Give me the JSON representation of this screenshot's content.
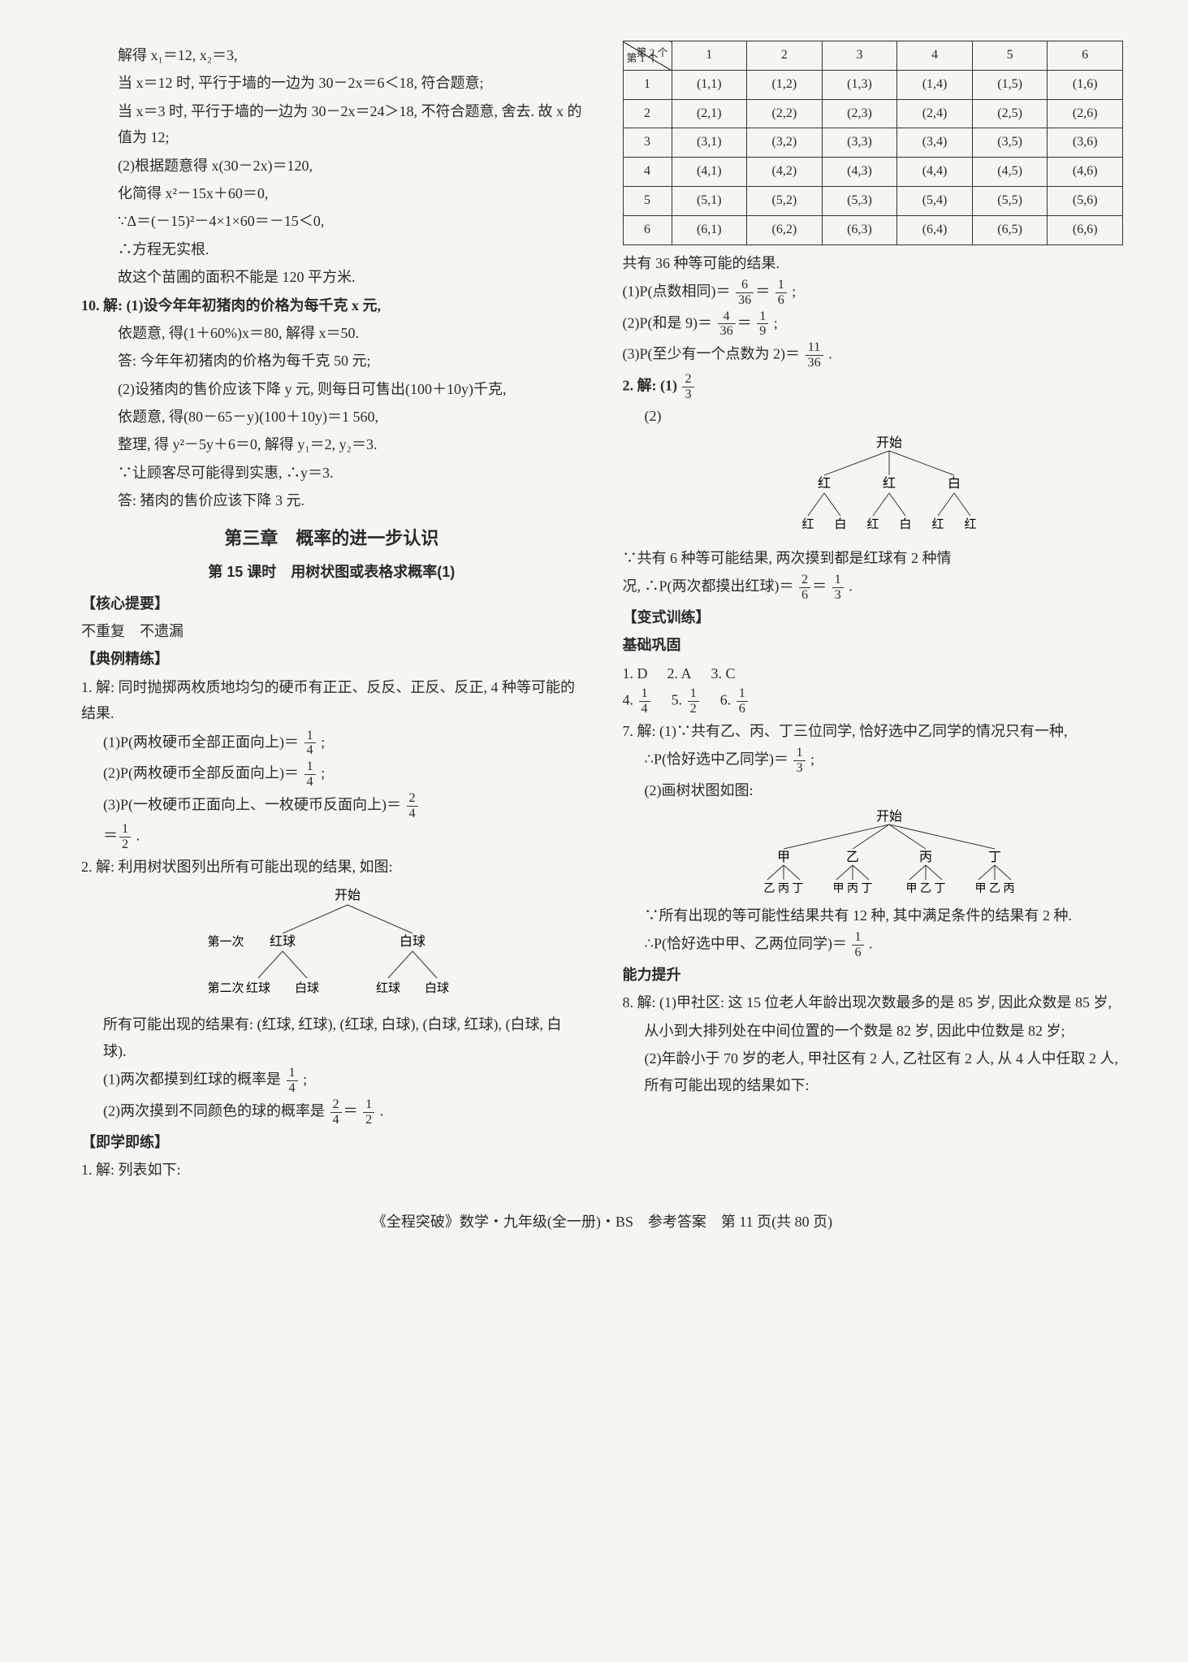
{
  "leftCol": {
    "l1": "解得 x₁＝12, x₂＝3,",
    "l2": "当 x＝12 时, 平行于墙的一边为 30－2x＝6＜18, 符合题意;",
    "l3": "当 x＝3 时, 平行于墙的一边为 30－2x＝24＞18, 不符合题意, 舍去. 故 x 的值为 12;",
    "l4": "(2)根据题意得 x(30－2x)＝120,",
    "l5": "化简得 x²－15x＋60＝0,",
    "l6": "∵Δ＝(－15)²－4×1×60＝－15＜0,",
    "l7": "∴方程无实根.",
    "l8": "故这个苗圃的面积不能是 120 平方米.",
    "q10": "10. 解: (1)设今年年初猪肉的价格为每千克 x 元,",
    "q10_2": "依题意, 得(1＋60%)x＝80, 解得 x＝50.",
    "q10_3": "答: 今年年初猪肉的价格为每千克 50 元;",
    "q10_4": "(2)设猪肉的售价应该下降 y 元, 则每日可售出(100＋10y)千克,",
    "q10_5": "依题意, 得(80－65－y)(100＋10y)＝1 560,",
    "q10_6": "整理, 得 y²－5y＋6＝0, 解得 y₁＝2, y₂＝3.",
    "q10_7": "∵让顾客尽可能得到实惠, ∴y＝3.",
    "q10_8": "答: 猪肉的售价应该下降 3 元.",
    "chapterTitle": "第三章　概率的进一步认识",
    "lessonTitle": "第 15 课时　用树状图或表格求概率(1)",
    "coreHeading": "【核心提要】",
    "coreContent": "不重复　不遗漏",
    "exHeading": "【典例精练】",
    "ex1": "1. 解: 同时抛掷两枚质地均匀的硬币有正正、反反、正反、反正, 4 种等可能的结果.",
    "ex1_1a": "(1)P(两枚硬币全部正面向上)＝",
    "ex1_2a": "(2)P(两枚硬币全部反面向上)＝",
    "ex1_3a": "(3)P(一枚硬币正面向上、一枚硬币反面向上)＝",
    "ex2": "2. 解: 利用树状图列出所有可能出现的结果, 如图:",
    "tree2_start": "开始",
    "tree2_l1": "第一次",
    "tree2_red": "红球",
    "tree2_white": "白球",
    "tree2_l2": "第二次",
    "ex2_res": "所有可能出现的结果有: (红球, 红球), (红球, 白球), (白球, 红球), (白球, 白球).",
    "ex2_1a": "(1)两次都摸到红球的概率是",
    "ex2_2a": "(2)两次摸到不同颜色的球的概率是",
    "practiceHeading": "【即学即练】",
    "practice1": "1. 解: 列表如下:"
  },
  "rightCol": {
    "table": {
      "diagTop": "第 2 个",
      "diagBottom": "第 1 个",
      "headers": [
        "1",
        "2",
        "3",
        "4",
        "5",
        "6"
      ],
      "rows": [
        [
          "1",
          "(1,1)",
          "(1,2)",
          "(1,3)",
          "(1,4)",
          "(1,5)",
          "(1,6)"
        ],
        [
          "2",
          "(2,1)",
          "(2,2)",
          "(2,3)",
          "(2,4)",
          "(2,5)",
          "(2,6)"
        ],
        [
          "3",
          "(3,1)",
          "(3,2)",
          "(3,3)",
          "(3,4)",
          "(3,5)",
          "(3,6)"
        ],
        [
          "4",
          "(4,1)",
          "(4,2)",
          "(4,3)",
          "(4,4)",
          "(4,5)",
          "(4,6)"
        ],
        [
          "5",
          "(5,1)",
          "(5,2)",
          "(5,3)",
          "(5,4)",
          "(5,5)",
          "(5,6)"
        ],
        [
          "6",
          "(6,1)",
          "(6,2)",
          "(6,3)",
          "(6,4)",
          "(6,5)",
          "(6,6)"
        ]
      ]
    },
    "r1": "共有 36 种等可能的结果.",
    "r2a": "(1)P(点数相同)＝",
    "r2f1n": "6",
    "r2f1d": "36",
    "r2f2n": "1",
    "r2f2d": "6",
    "r3a": "(2)P(和是 9)＝",
    "r3f1n": "4",
    "r3f1d": "36",
    "r3f2n": "1",
    "r3f2d": "9",
    "r4a": "(3)P(至少有一个点数为 2)＝",
    "r4fn": "11",
    "r4fd": "36",
    "q2_1": "2. 解: (1)",
    "q2_1fn": "2",
    "q2_1fd": "3",
    "q2_2": "(2)",
    "tree_start": "开始",
    "tree_red": "红",
    "tree_white": "白",
    "q2_res1": "∵共有 6 种等可能结果, 两次摸到都是红球有 2 种情",
    "q2_res2": "况, ∴P(两次都摸出红球)＝",
    "q2_f1n": "2",
    "q2_f1d": "6",
    "q2_f2n": "1",
    "q2_f2d": "3",
    "varHeading": "【变式训练】",
    "basicHeading": "基础巩固",
    "ans1": "1. D",
    "ans2": "2. A",
    "ans3": "3. C",
    "ans4": "4.",
    "ans4n": "1",
    "ans4d": "4",
    "ans5": "5.",
    "ans5n": "1",
    "ans5d": "2",
    "ans6": "6.",
    "ans6n": "1",
    "ans6d": "6",
    "q7": "7. 解: (1)∵共有乙、丙、丁三位同学, 恰好选中乙同学的情况只有一种,",
    "q7_1a": "∴P(恰好选中乙同学)＝",
    "q7_1n": "1",
    "q7_1d": "3",
    "q7_2": "(2)画树状图如图:",
    "tree7_start": "开始",
    "tree7_l1": [
      "甲",
      "乙",
      "丙",
      "丁"
    ],
    "tree7_l2": [
      "乙 丙 丁",
      "甲 丙 丁",
      "甲 乙 丁",
      "甲 乙 丙"
    ],
    "q7_res1": "∵所有出现的等可能性结果共有 12 种, 其中满足条件的结果有 2 种.",
    "q7_res2a": "∴P(恰好选中甲、乙两位同学)＝",
    "q7_res2n": "1",
    "q7_res2d": "6",
    "abilityHeading": "能力提升",
    "q8": "8. 解: (1)甲社区: 这 15 位老人年龄出现次数最多的是 85 岁, 因此众数是 85 岁,",
    "q8_2": "从小到大排列处在中间位置的一个数是 82 岁, 因此中位数是 82 岁;",
    "q8_3": "(2)年龄小于 70 岁的老人, 甲社区有 2 人, 乙社区有 2 人, 从 4 人中任取 2 人, 所有可能出现的结果如下:"
  },
  "footer": "《全程突破》数学・九年级(全一册)・BS　参考答案　第 11 页(共 80 页)",
  "fractions": {
    "oneQuarter": {
      "n": "1",
      "d": "4"
    },
    "twoFour": {
      "n": "2",
      "d": "4"
    },
    "oneHalf": {
      "n": "1",
      "d": "2"
    }
  }
}
